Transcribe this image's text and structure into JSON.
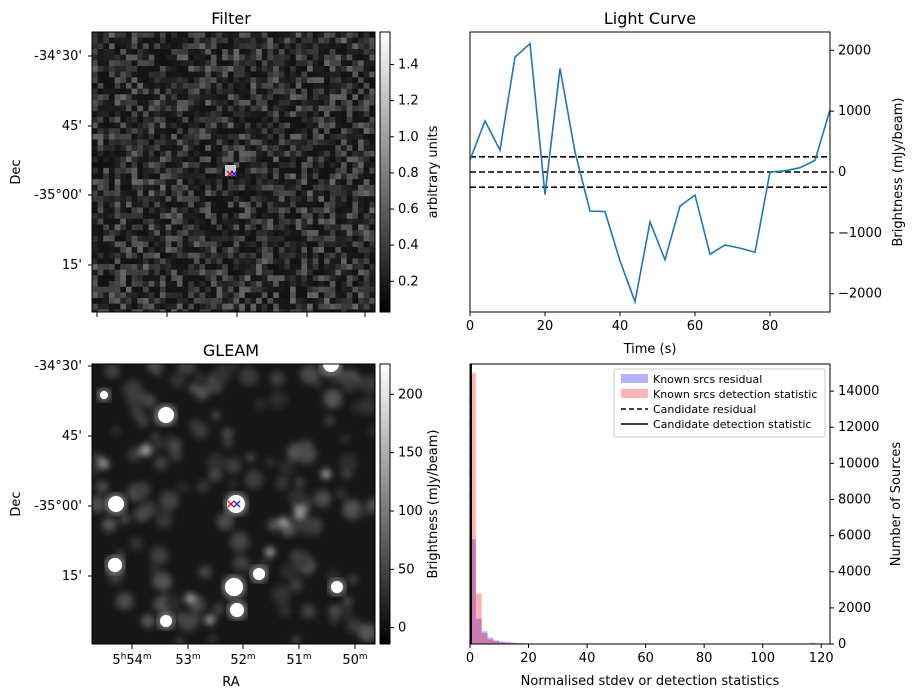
{
  "panels": {
    "filter": {
      "title": "Filter",
      "ylabel": "Dec",
      "dec_ticks": [
        "-34°30'",
        "45'",
        "-35°00'",
        "15'"
      ],
      "colorbar_label": "arbitrary units",
      "colorbar_ticks": [
        "0.2",
        "0.4",
        "0.6",
        "0.8",
        "1.0",
        "1.2",
        "1.4"
      ],
      "colorbar_range": [
        0.03,
        1.58
      ]
    },
    "gleam": {
      "title": "GLEAM",
      "ylabel": "Dec",
      "xlabel": "RA",
      "dec_ticks": [
        "-34°30'",
        "45'",
        "-35°00'",
        "15'"
      ],
      "ra_ticks": [
        {
          "h": "5",
          "m": "54"
        },
        {
          "h": "",
          "m": "53"
        },
        {
          "h": "",
          "m": "52"
        },
        {
          "h": "",
          "m": "51"
        },
        {
          "h": "",
          "m": "50"
        }
      ],
      "colorbar_label": "Brightness (mJy/beam)",
      "colorbar_ticks": [
        "0",
        "50",
        "100",
        "150",
        "200"
      ],
      "colorbar_range": [
        -14,
        226
      ]
    }
  },
  "marker_colors": {
    "red": "#e8000b",
    "blue": "#1f1fd6"
  },
  "chart_data": [
    {
      "type": "line",
      "title": "Light Curve",
      "xlabel": "Time (s)",
      "ylabel": "Brightness (mJy/beam)",
      "xlim": [
        0,
        96
      ],
      "ylim": [
        -2300,
        2300
      ],
      "x_ticks": [
        0,
        20,
        40,
        60,
        80
      ],
      "y_ticks": [
        -2000,
        -1000,
        0,
        1000,
        2000
      ],
      "series": [
        {
          "color": "#1f77b4",
          "x": [
            0,
            4,
            8,
            12,
            16,
            20,
            24,
            28,
            32,
            36,
            40,
            44,
            48,
            52,
            56,
            60,
            64,
            68,
            72,
            76,
            80,
            84,
            88,
            92,
            96
          ],
          "y": [
            200,
            840,
            360,
            1890,
            2110,
            -370,
            1700,
            330,
            -640,
            -650,
            -1460,
            -2130,
            -820,
            -1440,
            -560,
            -380,
            -1350,
            -1200,
            -1250,
            -1320,
            0,
            20,
            70,
            190,
            1020
          ]
        }
      ],
      "hlines": [
        250,
        0,
        -250
      ],
      "hline_style": "dashed"
    },
    {
      "type": "histogram",
      "xlabel": "Normalised stdev or detection statistics",
      "ylabel": "Number of Sources",
      "xlim": [
        0,
        123
      ],
      "ylim": [
        0,
        15500
      ],
      "x_ticks": [
        0,
        20,
        40,
        60,
        80,
        100,
        120
      ],
      "y_ticks": [
        0,
        2000,
        4000,
        6000,
        8000,
        10000,
        12000,
        14000
      ],
      "legend_position": "top-right",
      "legend": [
        {
          "label": "Known srcs residual",
          "kind": "patch",
          "color": "#b3b3ff"
        },
        {
          "label": "Known srcs detection statistic",
          "kind": "patch",
          "color": "#ffb3b3"
        },
        {
          "label": "Candidate residual",
          "kind": "dashed-line",
          "color": "#000000"
        },
        {
          "label": "Candidate detection statistic",
          "kind": "solid-line",
          "color": "#000000"
        }
      ],
      "bin_width": 2,
      "series": [
        {
          "name": "Known srcs residual",
          "color": "#0000ff",
          "opacity": 0.3,
          "bins": [
            0,
            2,
            4,
            6,
            8,
            10,
            12,
            14,
            16,
            18,
            20,
            24,
            30,
            40,
            50,
            60,
            70,
            80,
            90,
            100,
            110,
            116
          ],
          "values": [
            5800,
            1400,
            700,
            350,
            200,
            130,
            90,
            70,
            50,
            40,
            30,
            20,
            15,
            12,
            10,
            8,
            6,
            5,
            4,
            3,
            2,
            2
          ]
        },
        {
          "name": "Known srcs detection statistic",
          "color": "#ff0000",
          "opacity": 0.3,
          "bins": [
            0,
            2,
            4,
            6,
            8,
            10,
            12,
            14,
            16,
            18,
            20,
            24,
            30,
            40,
            50,
            60,
            70,
            80,
            90,
            100,
            110,
            116
          ],
          "values": [
            15000,
            2800,
            600,
            250,
            150,
            100,
            80,
            60,
            45,
            35,
            28,
            20,
            15,
            12,
            10,
            8,
            6,
            5,
            4,
            3,
            2,
            80
          ]
        }
      ],
      "candidate_residual": 0.3,
      "candidate_detection_statistic": 0.3
    }
  ]
}
